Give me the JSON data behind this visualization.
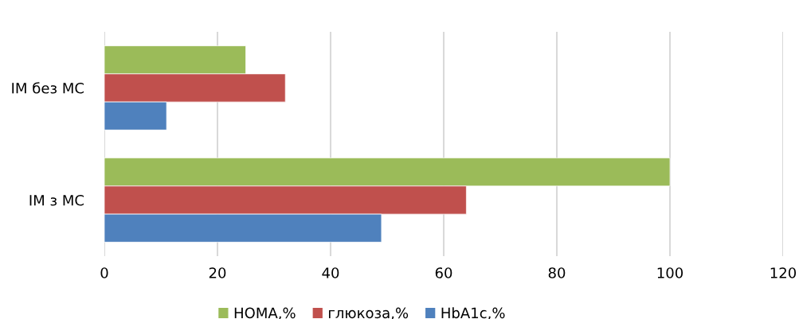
{
  "chart_data": {
    "type": "bar",
    "orientation": "horizontal",
    "categories": [
      "ІМ без МС",
      "ІМ з МС"
    ],
    "series": [
      {
        "name": "HOMA,%",
        "color": "#9bbb59",
        "values": [
          25,
          100
        ]
      },
      {
        "name": "глюкоза,%",
        "color": "#c0504d",
        "values": [
          32,
          64
        ]
      },
      {
        "name": "HbA1c,%",
        "color": "#4f81bd",
        "values": [
          11,
          49
        ]
      }
    ],
    "xlim": [
      0,
      120
    ],
    "xticks": [
      0,
      20,
      40,
      60,
      80,
      100,
      120
    ],
    "grid": "x",
    "legend": "bottom"
  }
}
